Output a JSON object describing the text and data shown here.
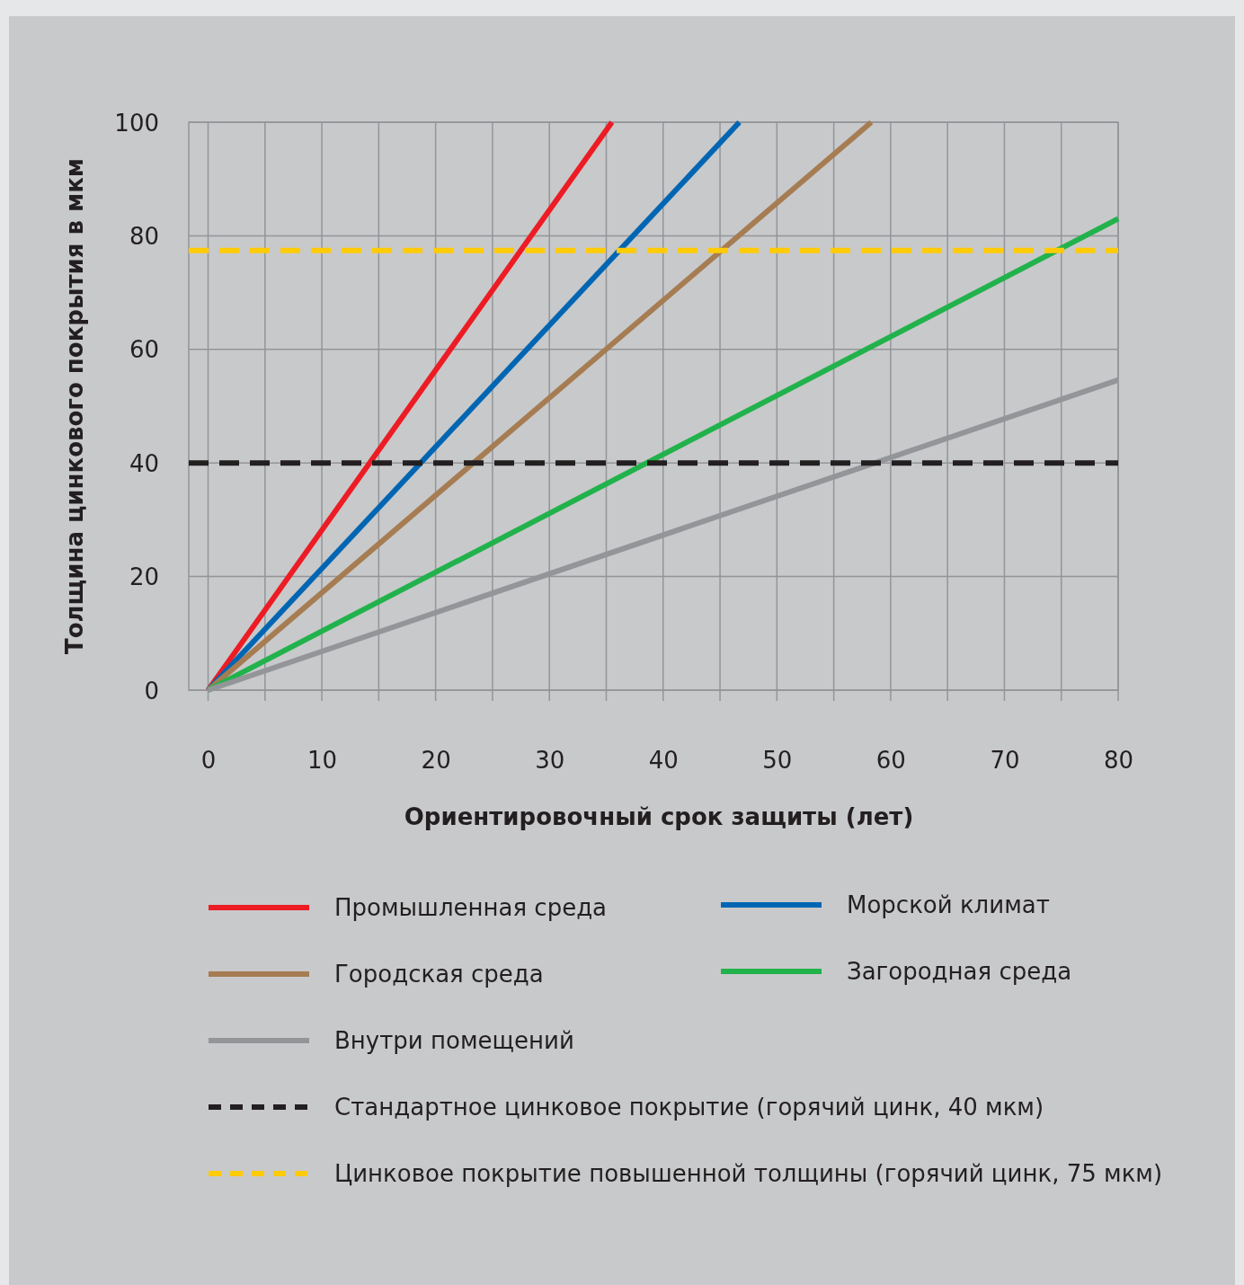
{
  "chart_data": {
    "type": "line",
    "xlabel": "Ориентировочный срок защиты (лет)",
    "ylabel": "Толщина цинкового покрытия в мкм",
    "xlim": [
      -1.7,
      80
    ],
    "ylim": [
      0,
      100
    ],
    "xticks": [
      0,
      {
        "value": 5,
        "label": null
      },
      10,
      {
        "value": 15,
        "label": null
      },
      20,
      {
        "value": 25,
        "label": null
      },
      30,
      {
        "value": 35,
        "label": null
      },
      40,
      {
        "value": 45,
        "label": null
      },
      50,
      {
        "value": 55,
        "label": null
      },
      60,
      {
        "value": 65,
        "label": null
      },
      70,
      {
        "value": 75,
        "label": null
      },
      80
    ],
    "yticks": [
      0,
      20,
      40,
      60,
      80,
      100
    ],
    "grid": true,
    "legend": "bottom",
    "marker": "none",
    "series": [
      {
        "name": "Промышленная среда",
        "color": "#ed1c24",
        "x": [
          0,
          35.5
        ],
        "values": [
          0,
          100
        ]
      },
      {
        "name": "Морской климат",
        "color": "#0066b3",
        "x": [
          0,
          46.7
        ],
        "values": [
          0,
          100
        ]
      },
      {
        "name": "Городская среда",
        "color": "#a67c52",
        "x": [
          0,
          58.3
        ],
        "values": [
          0,
          100
        ]
      },
      {
        "name": "Загородная среда",
        "color": "#22b24c",
        "x": [
          0,
          80
        ],
        "values": [
          0,
          83
        ]
      },
      {
        "name": "Внутри помещений",
        "color": "#939598",
        "x": [
          0,
          80
        ],
        "values": [
          0,
          54.6
        ]
      },
      {
        "name": "Стандартное цинковое покрытие (горячий цинк, 40 мкм)",
        "color": "#231f20",
        "line_style": "dashed",
        "x": [
          -1.7,
          80
        ],
        "values": [
          40,
          40
        ]
      },
      {
        "name": "Цинковое покрытие повышенной толщины (горячий цинк, 75 мкм)",
        "color": "#ffcb05",
        "line_style": "dashed",
        "x": [
          -1.7,
          80
        ],
        "values": [
          77.4,
          77.4
        ]
      }
    ]
  }
}
